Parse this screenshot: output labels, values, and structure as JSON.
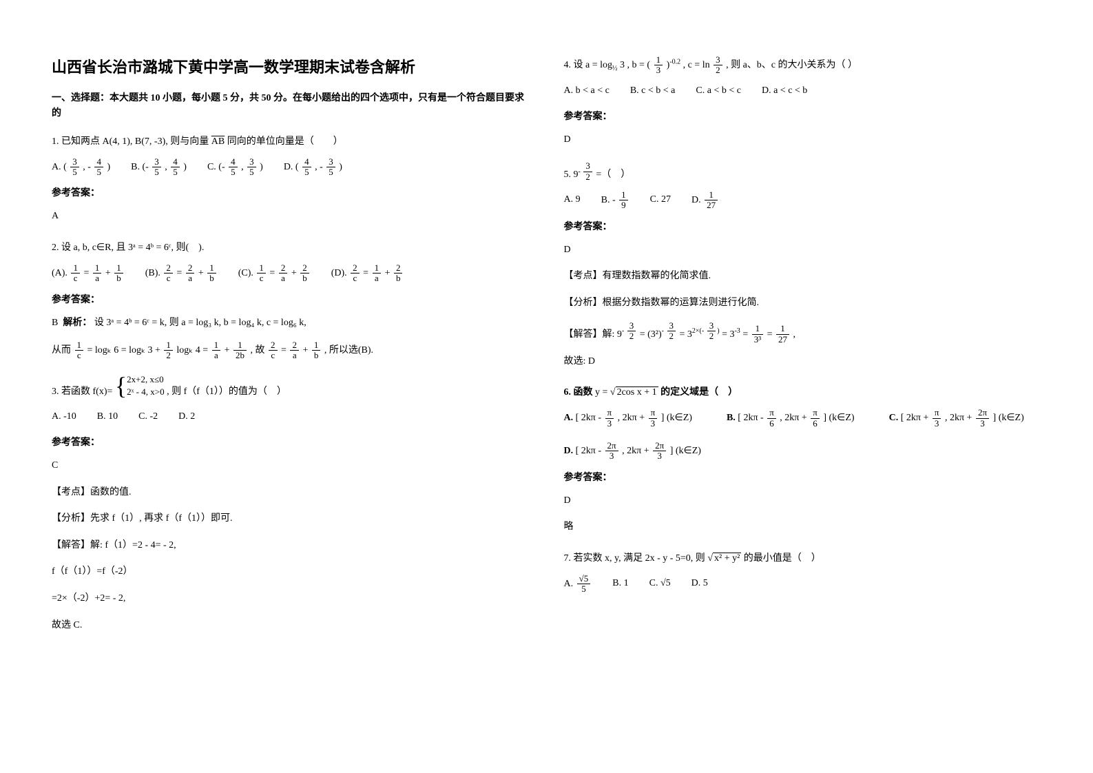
{
  "title": "山西省长治市潞城下黄中学高一数学理期末试卷含解析",
  "section_head": "一、选择题：本大题共 10 小题，每小题 5 分，共 50 分。在每小题给出的四个选项中，只有是一个符合题目要求的",
  "answer_label": "参考答案：",
  "q1": {
    "text_a": "1. 已知两点 A(4, 1), B(7, -3), 则与向量",
    "vec": "AB",
    "text_b": "同向的单位向量是（　　）",
    "opts": {
      "A": "A. (",
      "B": "B. (-",
      "C": "C. (-",
      "D": "D. ("
    },
    "frac": {
      "n35": "3",
      "d35": "5",
      "n45": "4",
      "d45": "5"
    },
    "close": ")",
    "neg": "-",
    "sep": ", ",
    "answer": "A"
  },
  "q2": {
    "text": "2. 设 a, b, c∈R, 且 3ᵃ = 4ᵇ = 6ᶜ, 则(　).",
    "opts": {
      "A": "(A). ",
      "B": "(B). ",
      "C": "(C). ",
      "D": "(D). "
    },
    "eq": " = ",
    "plus": " + ",
    "frac": {
      "n1": "1",
      "n2": "2"
    },
    "vars": {
      "a": "a",
      "b": "b",
      "c": "c"
    },
    "answer": "B",
    "solve_label": "解析：",
    "solve1": "设 3ᵃ = 4ᵇ = 6ᶜ = k, 则 a = log₃ k, b = log₄ k, c = log₆ k,",
    "solve2a": "从而 ",
    "solve2b": " = logₖ 6 = logₖ 3 + ",
    "solve2c": " logₖ 4 = ",
    "solve2d": " + ",
    "solve2e": " , 故 ",
    "solve2f": " = ",
    "solve2g": " + ",
    "solve2h": " , 所以选(B)."
  },
  "q3": {
    "text_a": "3. 若函数 ",
    "fx": "f(x)=",
    "p1": "2x+2, x≤0",
    "p2": "2ˣ - 4, x>0",
    "text_b": ", 则 f（f（1））的值为（　）",
    "opts": {
      "A": "A. -10",
      "B": "B. 10",
      "C": "C. -2",
      "D": "D. 2"
    },
    "answer": "C",
    "tag1": "【考点】函数的值.",
    "tag2": "【分析】先求 f（1）, 再求 f（f（1））即可.",
    "tag3": "【解答】解: f（1）=2 - 4= - 2,",
    "line2": "f（f（1））=f（-2）",
    "line3": "=2×（-2）+2= - 2,",
    "line4": "故选 C."
  },
  "q4": {
    "text_a": "4. 设 ",
    "a_expr_p1": "a = log",
    "a_expr_sub": "½",
    "a_expr_p2": " 3",
    "b_expr_p1": "b = ",
    "b_base_n": "1",
    "b_base_d": "3",
    "b_exp": "-0.2",
    "c_expr": "c = ln ",
    "c_n": "3",
    "c_d": "2",
    "text_b": ", 则 a、b、c 的大小关系为（ ）",
    "sep": " , ",
    "paren_l": "(",
    "paren_r": ")",
    "opts": {
      "A": "A. b < a < c",
      "B": "B. c < b < a",
      "C": "C. a < b < c",
      "D": "D. a < c < b"
    },
    "answer": "D"
  },
  "q5": {
    "text_a": "5. 9",
    "exp_neg": "- ",
    "exp_n": "3",
    "exp_d": "2",
    "text_b": " =（　）",
    "opts": {
      "A": "A. 9",
      "B": "B. ",
      "B_neg": "- ",
      "B_n": "1",
      "B_d": "9",
      "C": "C. 27",
      "D": "D. ",
      "D_n": "1",
      "D_d": "27"
    },
    "answer": "D",
    "tag1": "【考点】有理数指数幂的化简求值.",
    "tag2": "【分析】根据分数指数幂的运算法则进行化简.",
    "tag3": "【解答】解: 9",
    "s_eq1": " = (3²)",
    "s_eq2": " = ",
    "s_3": "3",
    "s_exp2": "2×(- ",
    "s_rp": ")",
    "s_eq3": " = 3",
    "s_m3": "-3",
    "s_eq4": " = ",
    "s_n1": "1",
    "s_d3": "3³",
    "s_eq5": " = ",
    "s_n1b": "1",
    "s_d27": "27",
    "line_end": ",",
    "line_sel": "故选: D"
  },
  "q6": {
    "text_a": "6. 函数 ",
    "y_eq": "y = ",
    "sqrt_inner": "2cos x + 1",
    "text_b": " 的定义域是（　）",
    "optA": "A.",
    "optB": "B.",
    "optC": "C.",
    "optD": "D.",
    "lb": "[",
    "rb": "]",
    "kz": "(k∈Z)",
    "twokpi": "2kπ",
    "minus": " - ",
    "plus": " + ",
    "comma": ", ",
    "pi": "π",
    "n2pi": "2π",
    "d3": "3",
    "d6": "6",
    "answer": "D",
    "略": "略"
  },
  "q7": {
    "text_a": "7. 若实数 x, y, 满足 2x - y - 5=0, 则",
    "sqrt_inner": "x² + y²",
    "text_b": "的最小值是（　）",
    "opts": {
      "A": "A. ",
      "A_n": "√5",
      "A_d": "5",
      "B": "B. 1",
      "C": "C. √5",
      "D": "D. 5"
    }
  }
}
